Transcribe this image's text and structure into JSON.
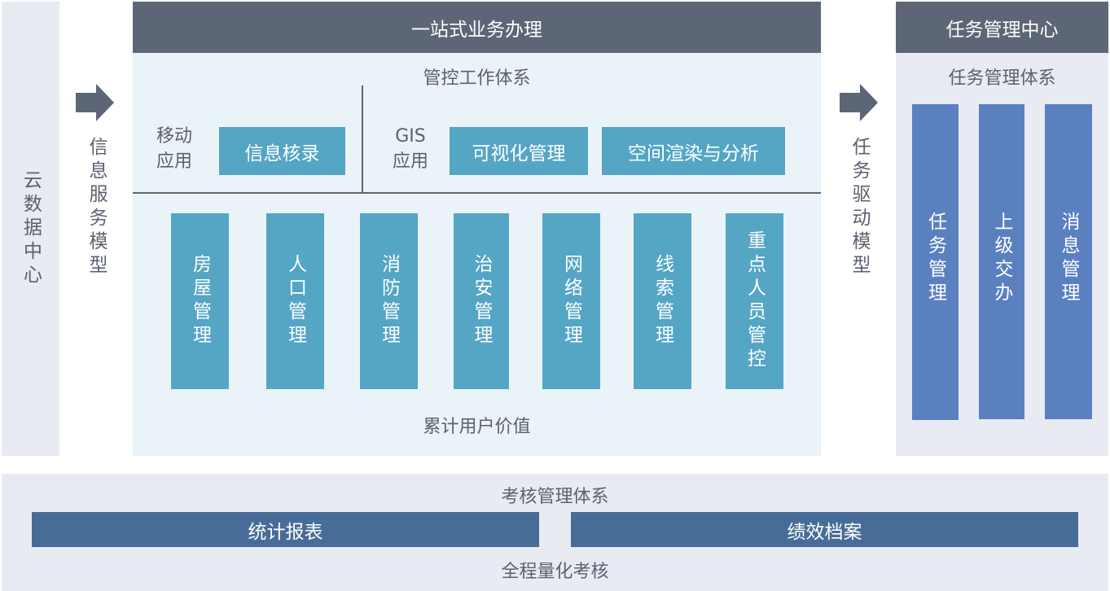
{
  "left": {
    "title": "云数据中心"
  },
  "arrow1": {
    "label": "信息服务模型",
    "icon": "arrow-right-icon"
  },
  "main": {
    "header": "一站式业务办理",
    "subtitle": "管控工作体系",
    "mobile": {
      "label": "移动应用",
      "items": [
        "信息核录"
      ]
    },
    "gis": {
      "label": "GIS 应用",
      "items": [
        "可视化管理",
        "空间渲染与分析"
      ]
    },
    "modules": [
      "房屋管理",
      "人口管理",
      "消防管理",
      "治安管理",
      "网络管理",
      "线索管理",
      "重点人员管控"
    ],
    "footer": "累计用户价值"
  },
  "arrow2": {
    "label": "任务驱动模型",
    "icon": "arrow-right-icon"
  },
  "right": {
    "header": "任务管理中心",
    "subtitle": "任务管理体系",
    "items": [
      "任务管理",
      "上级交办",
      "消息管理"
    ]
  },
  "bottom": {
    "title": "考核管理体系",
    "bars": [
      "统计报表",
      "绩效档案"
    ],
    "footer": "全程量化考核"
  },
  "colors": {
    "header": "#5c6676",
    "teal": "#55a5c5",
    "blue": "#5a80c0",
    "bar": "#476c97",
    "panel": "#e8ebf2",
    "mainBg": "#eaf3f7"
  }
}
